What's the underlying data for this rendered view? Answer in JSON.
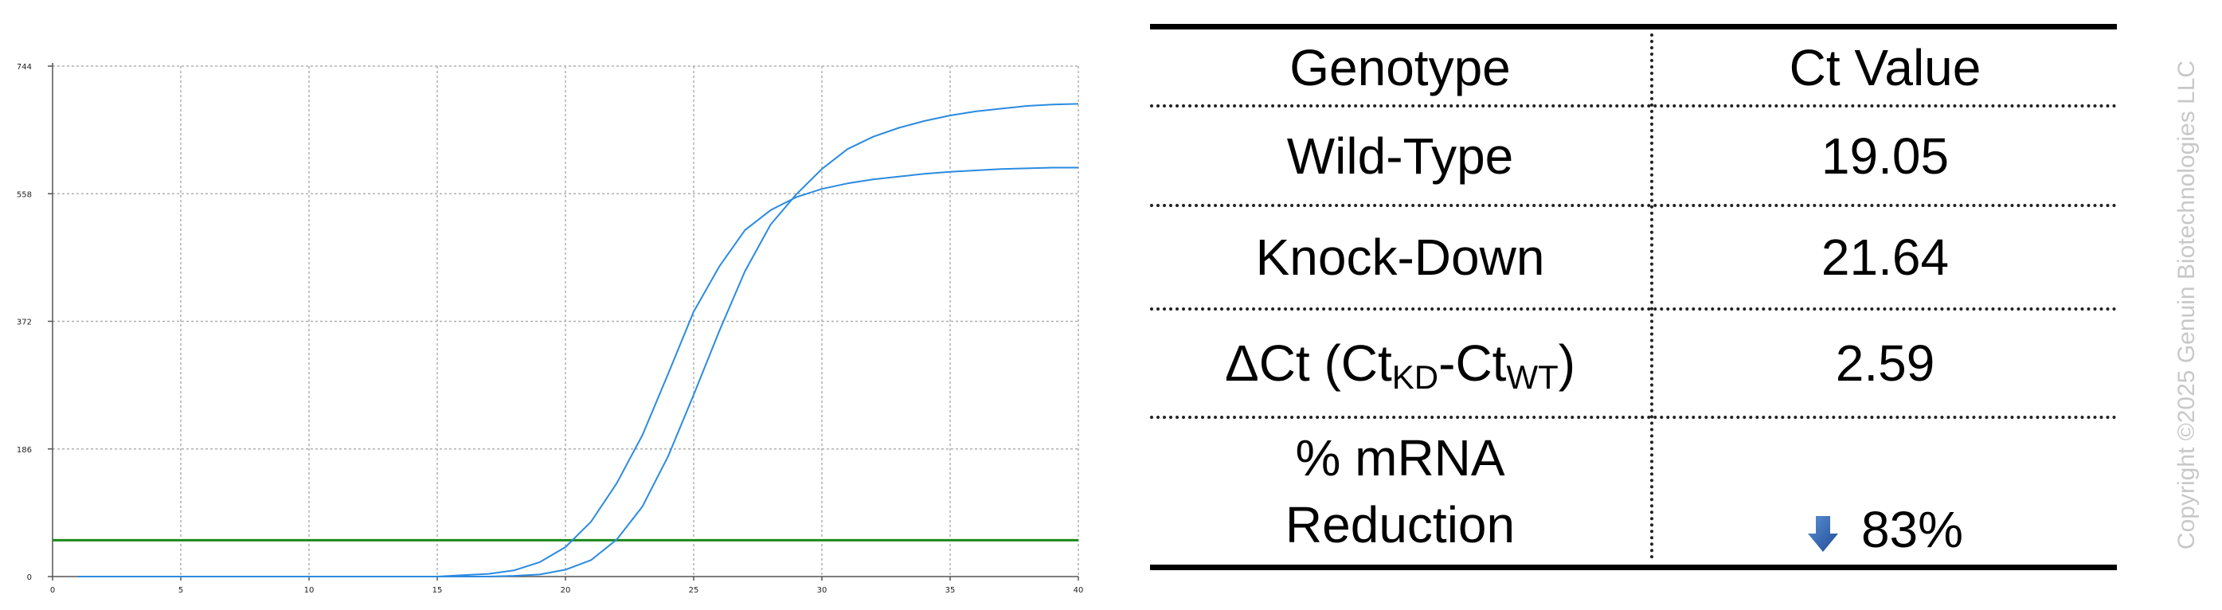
{
  "chart_data": {
    "type": "line",
    "title": "",
    "xlabel": "",
    "ylabel": "",
    "xlim": [
      0,
      40
    ],
    "ylim": [
      0,
      744
    ],
    "x_ticks": [
      0,
      5,
      10,
      15,
      20,
      25,
      30,
      35,
      40
    ],
    "y_ticks": [
      0,
      186,
      372,
      558,
      744
    ],
    "grid": true,
    "threshold": {
      "y": 53,
      "color": "#1a8a1a"
    },
    "series": [
      {
        "color": "#2a8be0",
        "x": [
          1,
          2,
          3,
          4,
          5,
          6,
          7,
          8,
          9,
          10,
          11,
          12,
          13,
          14,
          15,
          16,
          17,
          18,
          19,
          20,
          21,
          22,
          23,
          24,
          25,
          26,
          27,
          28,
          29,
          30,
          31,
          32,
          33,
          34,
          35,
          36,
          37,
          38,
          39,
          40
        ],
        "y": [
          0,
          0,
          0,
          0,
          0,
          0,
          0,
          0,
          0,
          0,
          0,
          0,
          0,
          0,
          0,
          2,
          4,
          9,
          21,
          43,
          80,
          136,
          206,
          295,
          386,
          452,
          505,
          534,
          553,
          565,
          573,
          579,
          583,
          587,
          590,
          592,
          594,
          595,
          596,
          596
        ]
      },
      {
        "color": "#2a8be0",
        "x": [
          1,
          2,
          3,
          4,
          5,
          6,
          7,
          8,
          9,
          10,
          11,
          12,
          13,
          14,
          15,
          16,
          17,
          18,
          19,
          20,
          21,
          22,
          23,
          24,
          25,
          26,
          27,
          28,
          29,
          30,
          31,
          32,
          33,
          34,
          35,
          36,
          37,
          38,
          39,
          40
        ],
        "y": [
          0,
          0,
          0,
          0,
          0,
          0,
          0,
          0,
          0,
          0,
          0,
          0,
          0,
          0,
          0,
          0,
          0,
          1,
          3,
          10,
          24,
          54,
          102,
          175,
          265,
          358,
          445,
          513,
          557,
          594,
          623,
          641,
          654,
          664,
          672,
          678,
          682,
          686,
          688,
          689
        ]
      }
    ]
  },
  "table": {
    "headers": [
      "Genotype",
      "Ct Value"
    ],
    "rows": [
      {
        "label": "Wild-Type",
        "value": "19.05"
      },
      {
        "label": "Knock-Down",
        "value": "21.64"
      },
      {
        "label_prefix": "ΔCt (Ct",
        "label_sub1": "KD",
        "label_mid": "-Ct",
        "label_sub2": "WT",
        "label_suffix": ")",
        "value": "2.59"
      },
      {
        "label_line1": "% mRNA",
        "label_line2": "Reduction",
        "value": "83%",
        "icon": "down-arrow-icon"
      }
    ],
    "arrow_color": "#2f5fae"
  },
  "watermark": "Copyright ©2025 Genuin Biotechnologies LLC"
}
